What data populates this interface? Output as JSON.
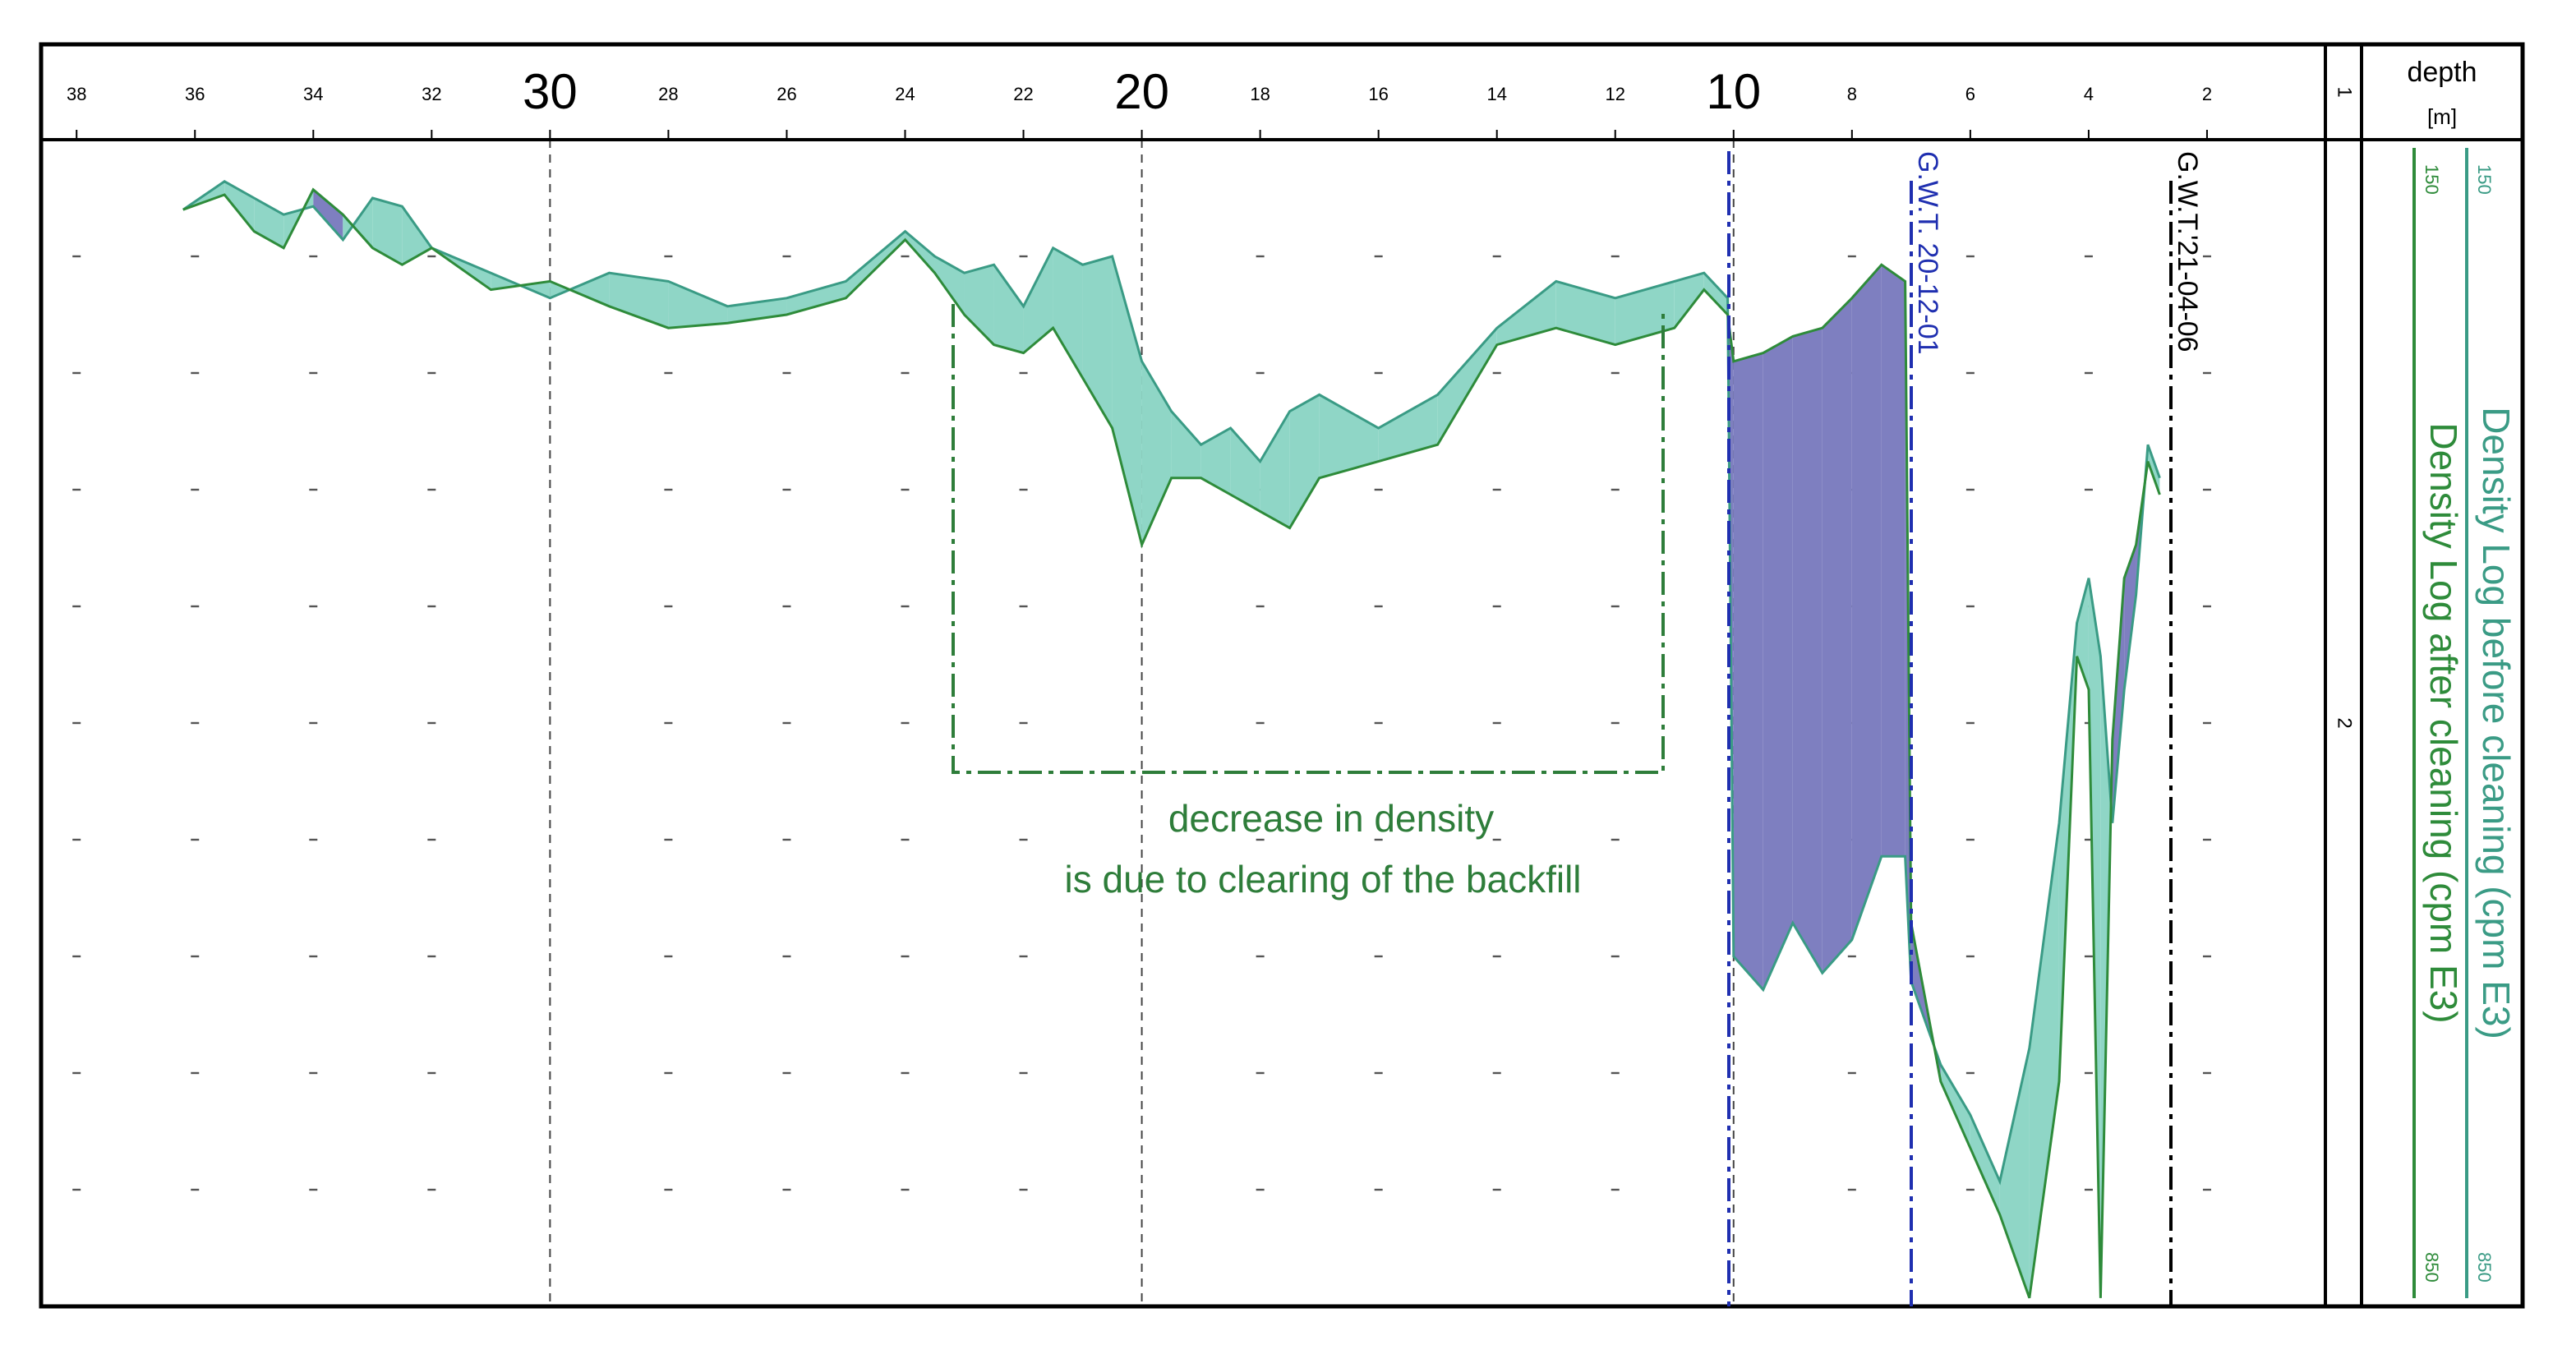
{
  "chart_data": {
    "type": "density-log",
    "xlabel": [
      "depth",
      "[m]"
    ],
    "track_labels": [
      "1",
      "2"
    ],
    "annotation": [
      "decrease in density",
      "is due to clearing of the backfill"
    ],
    "gwt_labels": [
      "G.W.T. 20-12-01",
      "G.W.T.'21-04-06"
    ],
    "xlim": [
      38.6,
      0
    ],
    "xticks": [
      38,
      36,
      34,
      32,
      30,
      28,
      26,
      24,
      22,
      20,
      18,
      16,
      14,
      12,
      10,
      8,
      6,
      4,
      2
    ],
    "ylim": [
      150,
      850
    ],
    "yticks": [
      220,
      290,
      360,
      430,
      500,
      570,
      640,
      710,
      780
    ],
    "x": [
      36.2,
      35.5,
      35,
      34.5,
      34,
      33.5,
      33,
      32.5,
      32,
      31,
      30,
      29,
      28,
      27,
      26,
      25,
      24,
      23.5,
      23,
      22.5,
      22,
      21.5,
      21,
      20.5,
      20,
      19.5,
      19,
      18.5,
      18,
      17.5,
      17,
      16,
      15,
      14,
      13,
      12,
      11,
      10.5,
      10.1,
      10,
      9.5,
      9,
      8.5,
      8,
      7.5,
      7.1,
      7,
      6.5,
      6,
      5.5,
      5,
      4.5,
      4.2,
      4,
      3.8,
      3.6,
      3.4,
      3.2,
      3,
      2.8
    ],
    "series": [
      {
        "name": "Density Log before cleaning (cpm E3)",
        "color": "#3a9b85",
        "values": [
          192,
          175,
          185,
          195,
          190,
          210,
          185,
          190,
          215,
          230,
          245,
          230,
          235,
          250,
          245,
          235,
          205,
          220,
          230,
          225,
          250,
          215,
          225,
          220,
          283,
          313,
          333,
          323,
          343,
          313,
          303,
          323,
          303,
          263,
          235,
          245,
          235,
          230,
          245,
          640,
          660,
          620,
          650,
          630,
          580,
          580,
          655,
          705,
          735,
          775,
          695,
          560,
          440,
          413,
          460,
          560,
          480,
          423,
          333,
          353
        ]
      },
      {
        "name": "Density Log after cleaning (cpm E3)",
        "color": "#2e8b3a",
        "values": [
          192,
          183,
          205,
          215,
          180,
          195,
          215,
          225,
          215,
          240,
          235,
          250,
          263,
          260,
          255,
          245,
          210,
          230,
          255,
          273,
          278,
          263,
          293,
          323,
          393,
          353,
          353,
          363,
          373,
          383,
          353,
          343,
          333,
          273,
          263,
          273,
          263,
          240,
          255,
          283,
          278,
          268,
          263,
          245,
          225,
          235,
          620,
          715,
          755,
          795,
          845,
          715,
          460,
          480,
          845,
          510,
          413,
          393,
          343,
          363
        ]
      }
    ],
    "fill_colors": [
      "#7e7fc0",
      "#8fd6c6"
    ]
  }
}
